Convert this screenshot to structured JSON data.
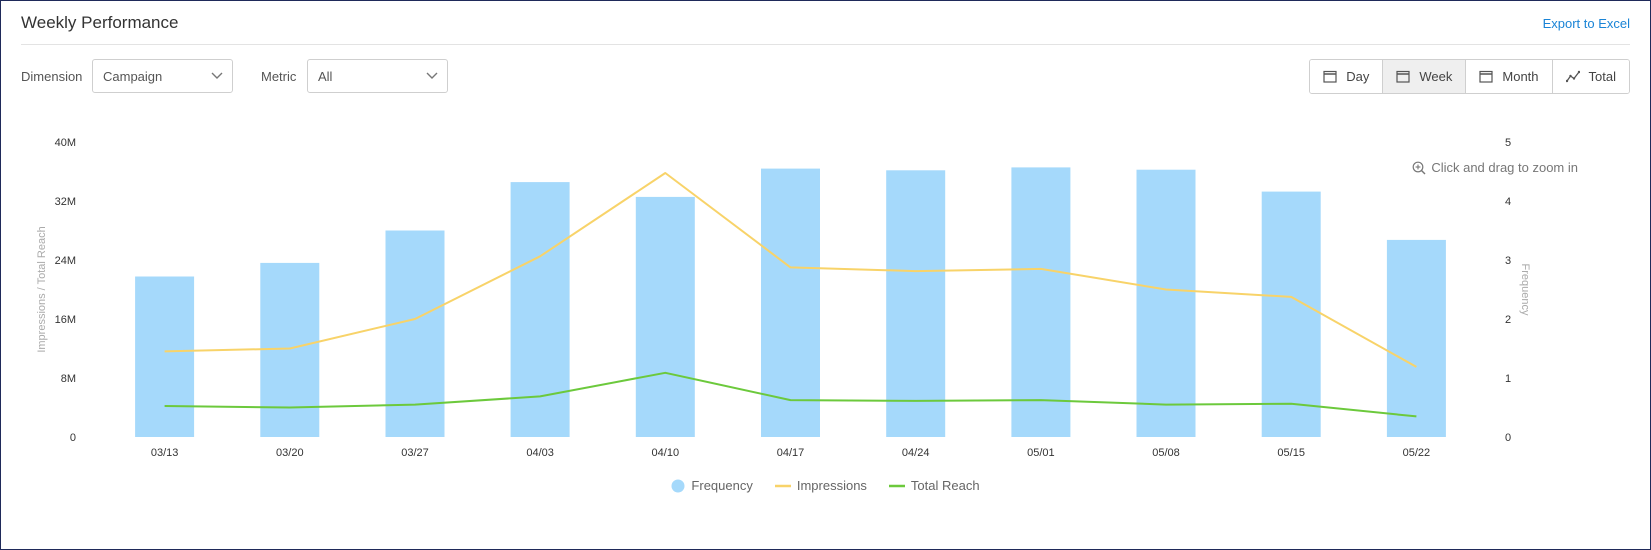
{
  "header": {
    "title": "Weekly Performance",
    "export_label": "Export to Excel"
  },
  "controls": {
    "dimension_label": "Dimension",
    "dimension_value": "Campaign",
    "metric_label": "Metric",
    "metric_value": "All"
  },
  "period_buttons": [
    {
      "label": "Day",
      "icon": "calendar-icon",
      "active": false
    },
    {
      "label": "Week",
      "icon": "calendar-icon",
      "active": true
    },
    {
      "label": "Month",
      "icon": "calendar-icon",
      "active": false
    },
    {
      "label": "Total",
      "icon": "trend-line-icon",
      "active": false
    }
  ],
  "zoom_hint": "Click and drag to zoom in",
  "colors": {
    "frequency": "#a5d9fb",
    "impressions": "#f8d369",
    "reach": "#6cc93c",
    "link": "#1a84d6"
  },
  "chart_data": {
    "type": "bar",
    "categories": [
      "03/13",
      "03/20",
      "03/27",
      "04/03",
      "04/10",
      "04/17",
      "04/24",
      "05/01",
      "05/08",
      "05/15",
      "05/22"
    ],
    "y_left": {
      "label": "Impressions / Total Reach",
      "range": [
        0,
        40000000
      ],
      "ticks": [
        "0",
        "8M",
        "16M",
        "24M",
        "32M",
        "40M"
      ]
    },
    "y_right": {
      "label": "Frequency",
      "range": [
        0,
        5
      ],
      "ticks": [
        "0",
        "1",
        "2",
        "3",
        "4",
        "5"
      ]
    },
    "series": [
      {
        "name": "Frequency",
        "type": "bar",
        "axis": "right",
        "color": "#a5d9fb",
        "values": [
          2.72,
          2.95,
          3.5,
          4.32,
          4.07,
          4.55,
          4.52,
          4.57,
          4.53,
          4.16,
          3.34
        ]
      },
      {
        "name": "Impressions",
        "type": "line",
        "axis": "left",
        "color": "#f8d369",
        "values": [
          11600000,
          12000000,
          16000000,
          24500000,
          35800000,
          23000000,
          22500000,
          22800000,
          20000000,
          19000000,
          9500000
        ]
      },
      {
        "name": "Total Reach",
        "type": "line",
        "axis": "left",
        "color": "#6cc93c",
        "values": [
          4200000,
          4000000,
          4400000,
          5500000,
          8700000,
          5000000,
          4900000,
          5000000,
          4400000,
          4500000,
          2800000
        ]
      }
    ],
    "legend_position": "bottom-center",
    "grid": false
  }
}
